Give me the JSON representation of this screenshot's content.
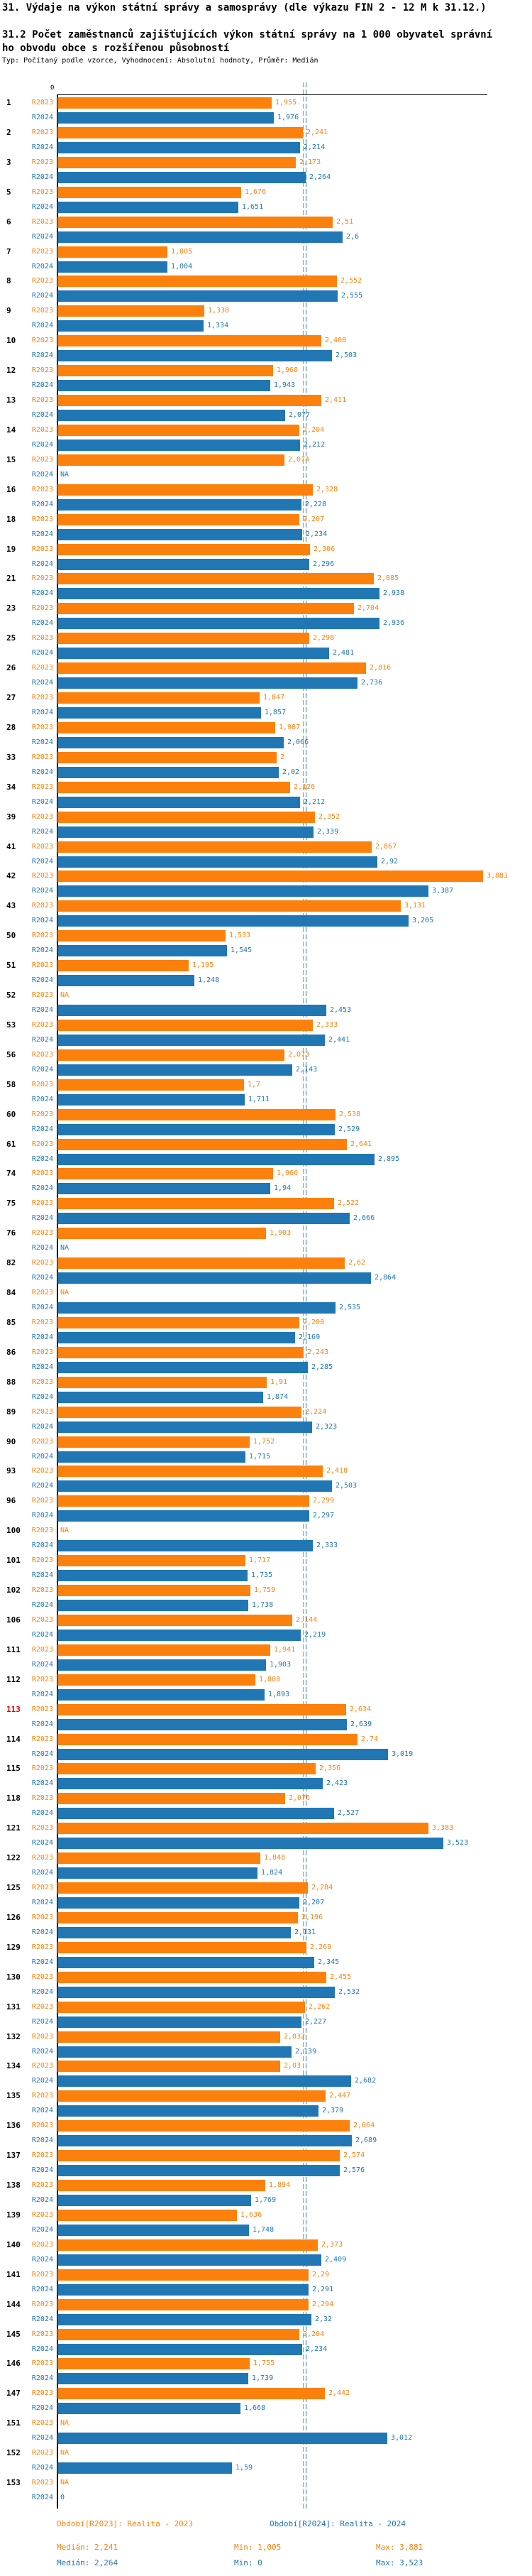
{
  "header": {
    "title": "31. Výdaje na výkon státní správy a samosprávy (dle výkazu FIN 2 - 12 M k 31.12.)",
    "subtitle": "31.2 Počet zaměstnanců zajišťujících výkon státní správy na 1 000 obyvatel správního obvodu obce s rozšířenou působností",
    "meta": "Typ: Počítaný podle vzorce, Vyhodnocení: Absolutní hodnoty, Průměr: Medián"
  },
  "axis": {
    "zero_label": "0"
  },
  "colors": {
    "r2023": "#fc810c",
    "r2024": "#2077b4",
    "highlight_row": "#dd0000",
    "row_number": "#000000"
  },
  "chart_data": {
    "type": "bar",
    "orientation": "horizontal",
    "title": "31.2 Počet zaměstnanců zajišťujících výkon státní správy na 1 000 obyvatel správního obvodu obce s rozšířenou působností",
    "value_format": "czech decimal comma, NA = missing",
    "series_names": [
      "R2023",
      "R2024"
    ],
    "legend_position": "bottom",
    "x_axis": {
      "min": 0,
      "zero_tick": "0",
      "grid": false
    },
    "median_lines": {
      "R2023": 2.241,
      "R2024": 2.264
    },
    "stats": {
      "R2023": {
        "median": 2.241,
        "min": 1.005,
        "max": 3.881
      },
      "R2024": {
        "median": 2.264,
        "min": 0,
        "max": 3.523
      }
    },
    "highlighted_category": "113",
    "rows": [
      {
        "cat": "1",
        "r2023": "1,955",
        "r2024": "1,976"
      },
      {
        "cat": "2",
        "r2023": "2,241",
        "r2024": "2,214"
      },
      {
        "cat": "3",
        "r2023": "2,173",
        "r2024": "2,264"
      },
      {
        "cat": "5",
        "r2023": "1,676",
        "r2024": "1,651"
      },
      {
        "cat": "6",
        "r2023": "2,51",
        "r2024": "2,6"
      },
      {
        "cat": "7",
        "r2023": "1,005",
        "r2024": "1,004"
      },
      {
        "cat": "8",
        "r2023": "2,552",
        "r2024": "2,555"
      },
      {
        "cat": "9",
        "r2023": "1,338",
        "r2024": "1,334"
      },
      {
        "cat": "10",
        "r2023": "2,408",
        "r2024": "2,503"
      },
      {
        "cat": "12",
        "r2023": "1,968",
        "r2024": "1,943"
      },
      {
        "cat": "13",
        "r2023": "2,411",
        "r2024": "2,077"
      },
      {
        "cat": "14",
        "r2023": "2,204",
        "r2024": "2,212"
      },
      {
        "cat": "15",
        "r2023": "2,074",
        "r2024": "NA"
      },
      {
        "cat": "16",
        "r2023": "2,328",
        "r2024": "2,228"
      },
      {
        "cat": "18",
        "r2023": "2,207",
        "r2024": "2,234"
      },
      {
        "cat": "19",
        "r2023": "2,306",
        "r2024": "2,296"
      },
      {
        "cat": "21",
        "r2023": "2,885",
        "r2024": "2,938"
      },
      {
        "cat": "23",
        "r2023": "2,704",
        "r2024": "2,936"
      },
      {
        "cat": "25",
        "r2023": "2,298",
        "r2024": "2,481"
      },
      {
        "cat": "26",
        "r2023": "2,816",
        "r2024": "2,736"
      },
      {
        "cat": "27",
        "r2023": "1,847",
        "r2024": "1,857"
      },
      {
        "cat": "28",
        "r2023": "1,987",
        "r2024": "2,066"
      },
      {
        "cat": "33",
        "r2023": "2",
        "r2024": "2,02"
      },
      {
        "cat": "34",
        "r2023": "2,126",
        "r2024": "2,212"
      },
      {
        "cat": "39",
        "r2023": "2,352",
        "r2024": "2,339"
      },
      {
        "cat": "41",
        "r2023": "2,867",
        "r2024": "2,92"
      },
      {
        "cat": "42",
        "r2023": "3,881",
        "r2024": "3,387"
      },
      {
        "cat": "43",
        "r2023": "3,131",
        "r2024": "3,205"
      },
      {
        "cat": "50",
        "r2023": "1,533",
        "r2024": "1,545"
      },
      {
        "cat": "51",
        "r2023": "1,195",
        "r2024": "1,248"
      },
      {
        "cat": "52",
        "r2023": "NA",
        "r2024": "2,453"
      },
      {
        "cat": "53",
        "r2023": "2,333",
        "r2024": "2,441"
      },
      {
        "cat": "56",
        "r2023": "2,073",
        "r2024": "2,143"
      },
      {
        "cat": "58",
        "r2023": "1,7",
        "r2024": "1,711"
      },
      {
        "cat": "60",
        "r2023": "2,538",
        "r2024": "2,529"
      },
      {
        "cat": "61",
        "r2023": "2,641",
        "r2024": "2,895"
      },
      {
        "cat": "74",
        "r2023": "1,966",
        "r2024": "1,94"
      },
      {
        "cat": "75",
        "r2023": "2,522",
        "r2024": "2,666"
      },
      {
        "cat": "76",
        "r2023": "1,903",
        "r2024": "NA"
      },
      {
        "cat": "82",
        "r2023": "2,62",
        "r2024": "2,864"
      },
      {
        "cat": "84",
        "r2023": "NA",
        "r2024": "2,535"
      },
      {
        "cat": "85",
        "r2023": "2,208",
        "r2024": "2,169"
      },
      {
        "cat": "86",
        "r2023": "2,243",
        "r2024": "2,285"
      },
      {
        "cat": "88",
        "r2023": "1,91",
        "r2024": "1,874"
      },
      {
        "cat": "89",
        "r2023": "2,224",
        "r2024": "2,323"
      },
      {
        "cat": "90",
        "r2023": "1,752",
        "r2024": "1,715"
      },
      {
        "cat": "93",
        "r2023": "2,418",
        "r2024": "2,503"
      },
      {
        "cat": "96",
        "r2023": "2,299",
        "r2024": "2,297"
      },
      {
        "cat": "100",
        "r2023": "NA",
        "r2024": "2,333"
      },
      {
        "cat": "101",
        "r2023": "1,717",
        "r2024": "1,735"
      },
      {
        "cat": "102",
        "r2023": "1,759",
        "r2024": "1,738"
      },
      {
        "cat": "106",
        "r2023": "2,144",
        "r2024": "2,219"
      },
      {
        "cat": "111",
        "r2023": "1,941",
        "r2024": "1,903"
      },
      {
        "cat": "112",
        "r2023": "1,808",
        "r2024": "1,893"
      },
      {
        "cat": "113",
        "r2023": "2,634",
        "r2024": "2,639"
      },
      {
        "cat": "114",
        "r2023": "2,74",
        "r2024": "3,019"
      },
      {
        "cat": "115",
        "r2023": "2,356",
        "r2024": "2,423"
      },
      {
        "cat": "118",
        "r2023": "2,076",
        "r2024": "2,527"
      },
      {
        "cat": "121",
        "r2023": "3,383",
        "r2024": "3,523"
      },
      {
        "cat": "122",
        "r2023": "1,848",
        "r2024": "1,824"
      },
      {
        "cat": "125",
        "r2023": "2,284",
        "r2024": "2,207"
      },
      {
        "cat": "126",
        "r2023": "2,196",
        "r2024": "2,131"
      },
      {
        "cat": "129",
        "r2023": "2,269",
        "r2024": "2,345"
      },
      {
        "cat": "130",
        "r2023": "2,455",
        "r2024": "2,532"
      },
      {
        "cat": "131",
        "r2023": "2,262",
        "r2024": "2,227"
      },
      {
        "cat": "132",
        "r2023": "2,032",
        "r2024": "2,139"
      },
      {
        "cat": "134",
        "r2023": "2,03",
        "r2024": "2,682"
      },
      {
        "cat": "135",
        "r2023": "2,447",
        "r2024": "2,379"
      },
      {
        "cat": "136",
        "r2023": "2,664",
        "r2024": "2,689"
      },
      {
        "cat": "137",
        "r2023": "2,574",
        "r2024": "2,576"
      },
      {
        "cat": "138",
        "r2023": "1,894",
        "r2024": "1,769"
      },
      {
        "cat": "139",
        "r2023": "1,636",
        "r2024": "1,748"
      },
      {
        "cat": "140",
        "r2023": "2,373",
        "r2024": "2,409"
      },
      {
        "cat": "141",
        "r2023": "2,29",
        "r2024": "2,291"
      },
      {
        "cat": "144",
        "r2023": "2,294",
        "r2024": "2,32"
      },
      {
        "cat": "145",
        "r2023": "2,204",
        "r2024": "2,234"
      },
      {
        "cat": "146",
        "r2023": "1,755",
        "r2024": "1,739"
      },
      {
        "cat": "147",
        "r2023": "2,442",
        "r2024": "1,668"
      },
      {
        "cat": "151",
        "r2023": "NA",
        "r2024": "3,012"
      },
      {
        "cat": "152",
        "r2023": "NA",
        "r2024": "1,59"
      },
      {
        "cat": "153",
        "r2023": "NA",
        "r2024": "0"
      }
    ]
  },
  "legend": {
    "period_r2023": "Období[R2023]: Realita - 2023",
    "period_r2024": "Období[R2024]: Realita - 2024",
    "median_r2023": "Medián: 2,241",
    "min_r2023": "Min: 1,005",
    "max_r2023": "Max: 3,881",
    "median_r2024": "Medián: 2,264",
    "min_r2024": "Min: 0",
    "max_r2024": "Max: 3,523"
  }
}
